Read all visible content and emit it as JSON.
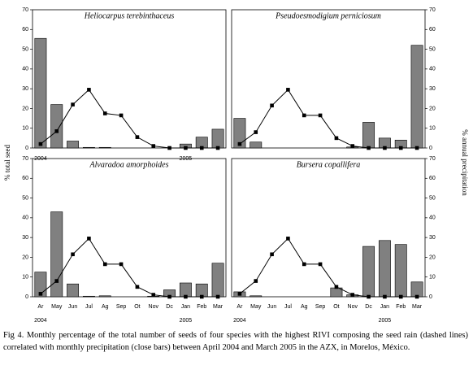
{
  "axis_labels": {
    "y": "% total seed",
    "y2": "% annual precipitation"
  },
  "caption": "Fig 4.  Monthly percentage of the total number of seeds of four species with the highest RIVI composing the seed rain (dashed lines) correlated with monthly precipitation (close bars) between April 2004 and March 2005 in the AZX, in Morelos, México.",
  "chart_data": [
    {
      "type": "bar",
      "title": "Heliocarpus terebinthaceus",
      "year_labels": [
        "2004",
        "2005"
      ],
      "ylim": [
        0,
        70
      ],
      "yticks": [
        0,
        10,
        20,
        30,
        40,
        50,
        60,
        70
      ],
      "y2lim": [
        0,
        70
      ],
      "series": [
        {
          "color": "#808080",
          "values": [
            55.5,
            22,
            3.5,
            0.3,
            0.3,
            0,
            0,
            0,
            0,
            2,
            5.5,
            9.5
          ]
        },
        {
          "color": "#000000",
          "axis": "y2",
          "values": [
            2,
            8.5,
            22,
            29.5,
            17.5,
            16.5,
            5.5,
            1,
            0,
            0,
            0,
            0
          ]
        }
      ]
    },
    {
      "type": "bar",
      "title": "Pseudoesmodigium perniciosum",
      "ylim": [
        0,
        70
      ],
      "y2lim": [
        0,
        70
      ],
      "y2ticks": [
        0,
        10,
        20,
        30,
        40,
        50,
        60,
        70
      ],
      "series": [
        {
          "color": "#808080",
          "values": [
            15,
            3,
            0,
            0,
            0,
            0,
            0,
            0.5,
            13,
            5,
            4,
            52
          ]
        },
        {
          "color": "#000000",
          "axis": "y2",
          "values": [
            2,
            8,
            21.5,
            29.5,
            16.5,
            16.5,
            5,
            1,
            0,
            0,
            0,
            0
          ]
        }
      ]
    },
    {
      "type": "bar",
      "title": "Alvaradoa amorphoides",
      "year_labels": [
        "2004",
        "2005"
      ],
      "categories": [
        "Ar",
        "May",
        "Jun",
        "Jul",
        "Ag",
        "Sep",
        "Ot",
        "Nov",
        "Dc",
        "Jan",
        "Feb",
        "Mar"
      ],
      "ylim": [
        0,
        70
      ],
      "yticks": [
        0,
        10,
        20,
        30,
        40,
        50,
        60,
        70
      ],
      "y2lim": [
        0,
        70
      ],
      "series": [
        {
          "color": "#808080",
          "values": [
            12.5,
            43,
            6.5,
            0.3,
            0.5,
            0,
            0,
            0.3,
            3.5,
            7,
            6.5,
            17
          ]
        },
        {
          "color": "#000000",
          "axis": "y2",
          "values": [
            1.5,
            8,
            21.5,
            29.5,
            16.5,
            16.5,
            5,
            1,
            0,
            0,
            0,
            0
          ]
        }
      ]
    },
    {
      "type": "bar",
      "title": "Bursera copallifera",
      "year_labels": [
        "2004",
        "2005"
      ],
      "categories": [
        "Ar",
        "May",
        "Jun",
        "Jul",
        "Ag",
        "Sep",
        "Ot",
        "Nov",
        "Dc",
        "Jan",
        "Feb",
        "Mar"
      ],
      "ylim": [
        0,
        70
      ],
      "y2lim": [
        0,
        70
      ],
      "y2ticks": [
        0,
        10,
        20,
        30,
        40,
        50,
        60,
        70
      ],
      "series": [
        {
          "color": "#808080",
          "values": [
            2.5,
            0.5,
            0,
            0,
            0,
            0,
            4.5,
            1,
            25.5,
            28.5,
            26.5,
            7.5
          ]
        },
        {
          "color": "#000000",
          "axis": "y2",
          "values": [
            1.5,
            8,
            21.5,
            29.5,
            16.5,
            16.5,
            5,
            1,
            0,
            0,
            0,
            0
          ]
        }
      ]
    }
  ]
}
